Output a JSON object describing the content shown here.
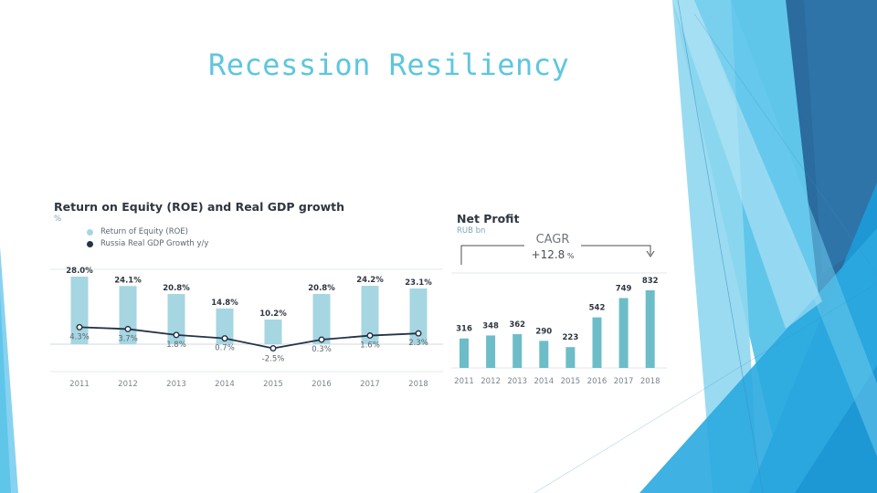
{
  "slide": {
    "title": "Recession Resiliency"
  },
  "colors": {
    "title": "#5ec6e0",
    "bar": "#a6d6e1",
    "bar_net": "#6cbdc7",
    "line": "#253247",
    "text_dark": "#2f3640",
    "text_light": "#5d6770"
  },
  "chart_data": [
    {
      "type": "bar",
      "title": "Return on Equity (ROE) and Real GDP growth",
      "unit": "%",
      "categories": [
        "2011",
        "2012",
        "2013",
        "2014",
        "2015",
        "2016",
        "2017",
        "2018"
      ],
      "series": [
        {
          "name": "Return of Equity (ROE)",
          "type": "bar",
          "values": [
            28.0,
            24.1,
            20.8,
            14.8,
            10.2,
            20.8,
            24.2,
            23.1
          ],
          "labels": [
            "28.0%",
            "24.1%",
            "20.8%",
            "14.8%",
            "10.2%",
            "20.8%",
            "24.2%",
            "23.1%"
          ]
        },
        {
          "name": "Russia Real GDP Growth y/y",
          "type": "line",
          "values": [
            4.3,
            3.7,
            1.8,
            0.7,
            -2.5,
            0.3,
            1.6,
            2.3
          ],
          "labels": [
            "4.3%",
            "3.7%",
            "1.8%",
            "0.7%",
            "-2.5%",
            "0.3%",
            "1.6%",
            "2.3%"
          ]
        }
      ],
      "ylim": [
        -4,
        30
      ]
    },
    {
      "type": "bar",
      "title": "Net Profit",
      "unit": "RUB bn",
      "categories": [
        "2011",
        "2012",
        "2013",
        "2014",
        "2015",
        "2016",
        "2017",
        "2018"
      ],
      "values": [
        316,
        348,
        362,
        290,
        223,
        542,
        749,
        832
      ],
      "ylim": [
        0,
        900
      ],
      "annotation": {
        "label": "CAGR",
        "value": "+12.8",
        "unit": "%"
      }
    }
  ]
}
